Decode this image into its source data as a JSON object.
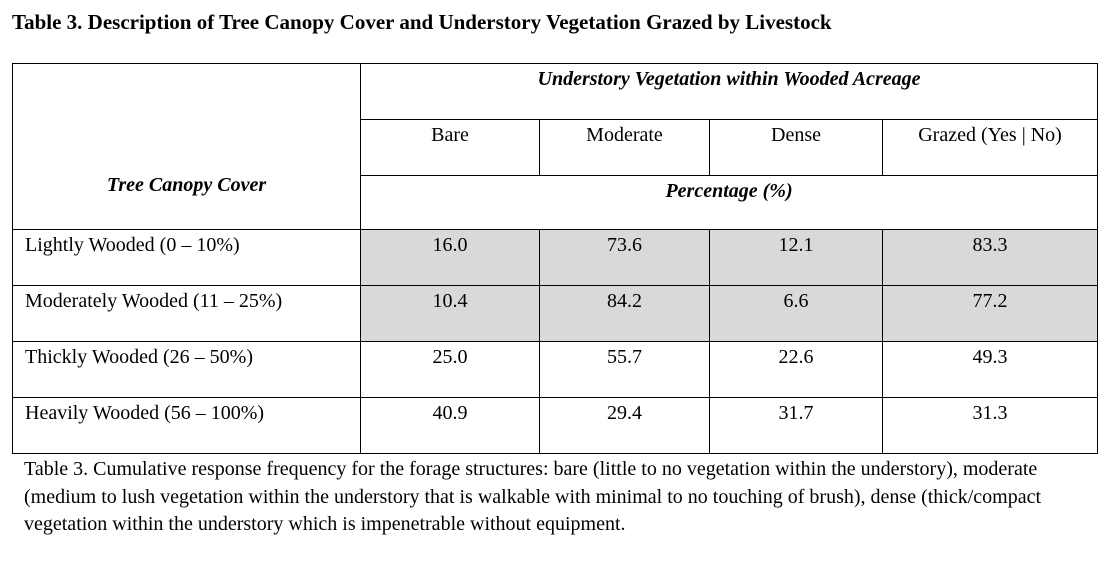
{
  "title": "Table 3. Description of Tree Canopy Cover and Understory Vegetation Grazed by Livestock",
  "table": {
    "row_header": "Tree Canopy Cover",
    "group_header": "Understory Vegetation within Wooded Acreage",
    "columns": [
      "Bare",
      "Moderate",
      "Dense",
      "Grazed (Yes | No)"
    ],
    "unit_header": "Percentage (%)",
    "shaded_color": "#d9d9d9",
    "rows": [
      {
        "label": "Lightly Wooded (0 – 10%)",
        "values": [
          "16.0",
          "73.6",
          "12.1",
          "83.3"
        ],
        "shaded": true
      },
      {
        "label": "Moderately Wooded (11 – 25%)",
        "values": [
          "10.4",
          "84.2",
          "6.6",
          "77.2"
        ],
        "shaded": true
      },
      {
        "label": "Thickly Wooded (26 – 50%)",
        "values": [
          "25.0",
          "55.7",
          "22.6",
          "49.3"
        ],
        "shaded": false
      },
      {
        "label": "Heavily Wooded (56 – 100%)",
        "values": [
          "40.9",
          "29.4",
          "31.7",
          "31.3"
        ],
        "shaded": false
      }
    ]
  },
  "caption": "Table 3. Cumulative response frequency for the forage structures: bare (little to no vegetation within the understory), moderate (medium to lush vegetation within the understory that is walkable with minimal to no touching of brush), dense (thick/compact vegetation within the understory which is impenetrable without equipment."
}
